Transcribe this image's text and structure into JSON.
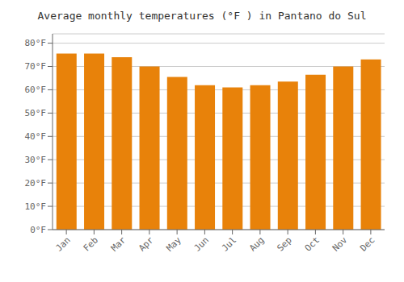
{
  "chart_data": {
    "type": "bar",
    "title": "Average monthly temperatures (°F ) in Pantano do Sul",
    "categories": [
      "Jan",
      "Feb",
      "Mar",
      "Apr",
      "May",
      "Jun",
      "Jul",
      "Aug",
      "Sep",
      "Oct",
      "Nov",
      "Dec"
    ],
    "values": [
      75.5,
      75.5,
      74.0,
      70.0,
      65.5,
      62.0,
      61.0,
      62.0,
      63.5,
      66.5,
      70.0,
      73.0
    ],
    "color": "#E8820A",
    "ylim": [
      0,
      84
    ],
    "yticks": [
      {
        "value": 0,
        "label": "0°F"
      },
      {
        "value": 10,
        "label": "10°F"
      },
      {
        "value": 20,
        "label": "20°F"
      },
      {
        "value": 30,
        "label": "30°F"
      },
      {
        "value": 40,
        "label": "40°F"
      },
      {
        "value": 50,
        "label": "50°F"
      },
      {
        "value": 60,
        "label": "60°F"
      },
      {
        "value": 70,
        "label": "70°F"
      },
      {
        "value": 80,
        "label": "80°F"
      }
    ],
    "grid": true
  }
}
